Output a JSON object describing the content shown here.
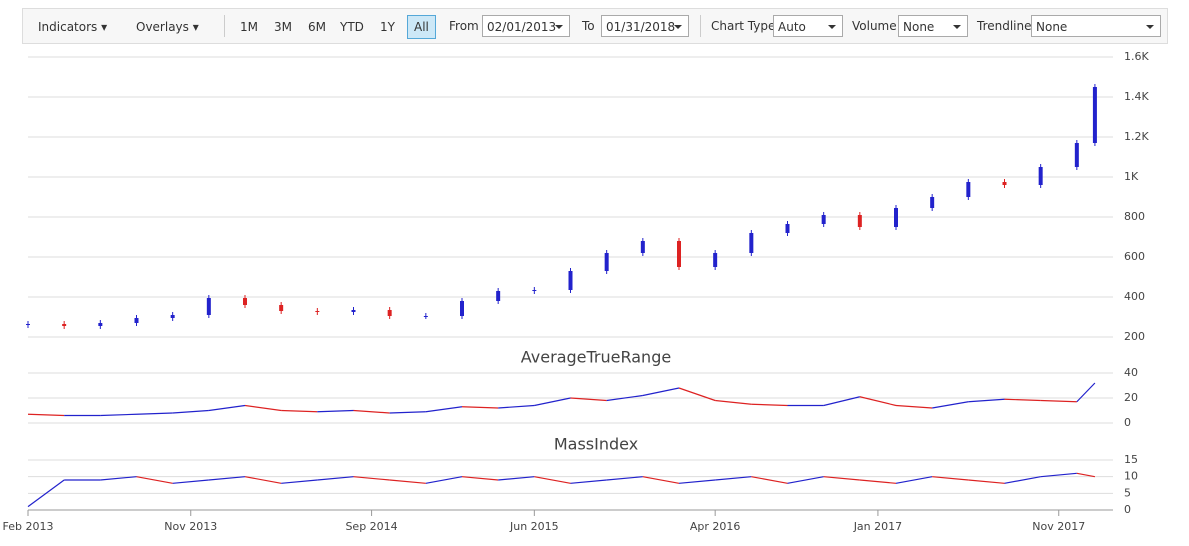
{
  "toolbar": {
    "indicators": "Indicators",
    "overlays": "Overlays",
    "ranges": [
      "1M",
      "3M",
      "6M",
      "YTD",
      "1Y",
      "All"
    ],
    "selected_range": "All",
    "from_label": "From",
    "from": "02/01/2013",
    "to_label": "To",
    "to": "01/31/2018",
    "chart_type_label": "Chart Type",
    "chart_type": "Auto",
    "volume_label": "Volume",
    "volume": "None",
    "trendline_label": "Trendline",
    "trendline": "None"
  },
  "chart_data": [
    {
      "type": "candlestick",
      "up_color": "#2222cc",
      "down_color": "#dd2222",
      "grid": true,
      "x": [
        "2013-02",
        "2013-04",
        "2013-06",
        "2013-08",
        "2013-10",
        "2013-12",
        "2014-02",
        "2014-04",
        "2014-06",
        "2014-08",
        "2014-10",
        "2014-12",
        "2015-02",
        "2015-04",
        "2015-06",
        "2015-08",
        "2015-10",
        "2015-12",
        "2016-02",
        "2016-04",
        "2016-06",
        "2016-08",
        "2016-10",
        "2016-12",
        "2017-02",
        "2017-04",
        "2017-06",
        "2017-08",
        "2017-10",
        "2017-12",
        "2018-01"
      ],
      "open": [
        260,
        265,
        255,
        270,
        295,
        310,
        395,
        360,
        330,
        325,
        335,
        305,
        305,
        380,
        430,
        435,
        530,
        620,
        680,
        550,
        620,
        720,
        765,
        810,
        750,
        845,
        900,
        975,
        960,
        1050,
        1170
      ],
      "high": [
        280,
        280,
        285,
        310,
        325,
        410,
        410,
        375,
        345,
        350,
        350,
        320,
        395,
        445,
        450,
        545,
        635,
        695,
        695,
        635,
        735,
        780,
        825,
        825,
        860,
        915,
        990,
        990,
        1065,
        1185,
        1465
      ],
      "low": [
        245,
        240,
        240,
        255,
        280,
        295,
        345,
        315,
        310,
        310,
        290,
        290,
        290,
        365,
        415,
        420,
        515,
        605,
        535,
        535,
        605,
        705,
        750,
        735,
        735,
        830,
        885,
        945,
        945,
        1035,
        1155
      ],
      "close": [
        265,
        255,
        270,
        295,
        310,
        395,
        360,
        330,
        325,
        335,
        305,
        305,
        380,
        430,
        435,
        530,
        620,
        680,
        550,
        620,
        720,
        765,
        810,
        750,
        845,
        900,
        975,
        960,
        1050,
        1170,
        1450
      ],
      "xlim": [
        "2013-02",
        "2018-02"
      ],
      "ylim": [
        200,
        1600
      ],
      "yticks": [
        200,
        400,
        600,
        800,
        {
          "value": 1000,
          "label": "1K"
        },
        {
          "value": 1200,
          "label": "1.2K"
        },
        {
          "value": 1400,
          "label": "1.4K"
        },
        {
          "value": 1600,
          "label": "1.6K"
        }
      ]
    },
    {
      "type": "line",
      "title": "AverageTrueRange",
      "up_color": "#2222cc",
      "down_color": "#dd2222",
      "grid": true,
      "x": [
        "2013-02",
        "2013-04",
        "2013-06",
        "2013-08",
        "2013-10",
        "2013-12",
        "2014-02",
        "2014-04",
        "2014-06",
        "2014-08",
        "2014-10",
        "2014-12",
        "2015-02",
        "2015-04",
        "2015-06",
        "2015-08",
        "2015-10",
        "2015-12",
        "2016-02",
        "2016-04",
        "2016-06",
        "2016-08",
        "2016-10",
        "2016-12",
        "2017-02",
        "2017-04",
        "2017-06",
        "2017-08",
        "2017-10",
        "2017-12",
        "2018-01"
      ],
      "values": [
        7,
        6,
        6,
        7,
        8,
        10,
        14,
        10,
        9,
        10,
        8,
        9,
        13,
        12,
        14,
        20,
        18,
        22,
        28,
        18,
        15,
        14,
        14,
        21,
        14,
        12,
        17,
        19,
        18,
        17,
        32
      ],
      "xlim": [
        "2013-02",
        "2018-02"
      ],
      "ylim": [
        0,
        40
      ],
      "yticks": [
        0,
        20,
        40
      ]
    },
    {
      "type": "line",
      "title": "MassIndex",
      "up_color": "#2222cc",
      "down_color": "#dd2222",
      "grid": true,
      "x": [
        "2013-02",
        "2013-04",
        "2013-06",
        "2013-08",
        "2013-10",
        "2013-12",
        "2014-02",
        "2014-04",
        "2014-06",
        "2014-08",
        "2014-10",
        "2014-12",
        "2015-02",
        "2015-04",
        "2015-06",
        "2015-08",
        "2015-10",
        "2015-12",
        "2016-02",
        "2016-04",
        "2016-06",
        "2016-08",
        "2016-10",
        "2016-12",
        "2017-02",
        "2017-04",
        "2017-06",
        "2017-08",
        "2017-10",
        "2017-12",
        "2018-01"
      ],
      "values": [
        1,
        9,
        9,
        10,
        8,
        9,
        10,
        8,
        9,
        10,
        9,
        8,
        10,
        9,
        10,
        8,
        9,
        10,
        8,
        9,
        10,
        8,
        10,
        9,
        8,
        10,
        9,
        8,
        10,
        11,
        10
      ],
      "xlim": [
        "2013-02",
        "2018-02"
      ],
      "ylim": [
        0,
        15
      ],
      "yticks": [
        0,
        5,
        10,
        15
      ],
      "xticks": [
        {
          "value": "2013-02",
          "label": "Feb 2013"
        },
        {
          "value": "2013-11",
          "label": "Nov 2013"
        },
        {
          "value": "2014-09",
          "label": "Sep 2014"
        },
        {
          "value": "2015-06",
          "label": "Jun 2015"
        },
        {
          "value": "2016-04",
          "label": "Apr 2016"
        },
        {
          "value": "2017-01",
          "label": "Jan 2017"
        },
        {
          "value": "2017-11",
          "label": "Nov 2017"
        }
      ]
    }
  ]
}
